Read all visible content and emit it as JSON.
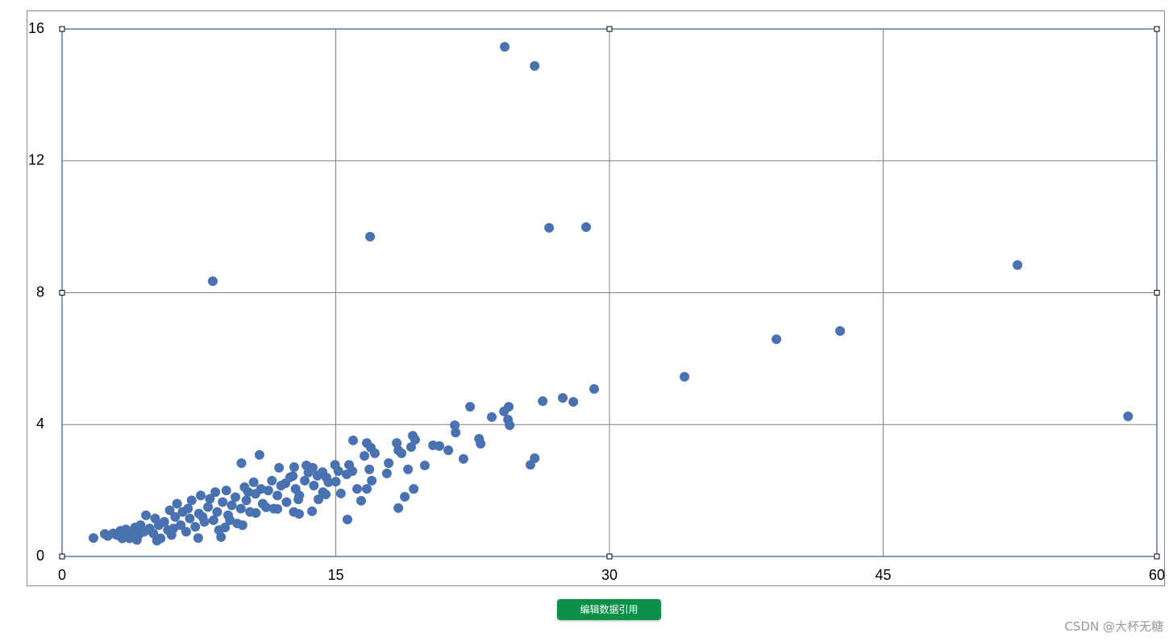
{
  "chart_data": {
    "type": "scatter",
    "color": "#4a72b0",
    "grid": true,
    "xlim": [
      0,
      60
    ],
    "ylim": [
      0,
      16
    ],
    "xticks": [
      0,
      15,
      30,
      45,
      60
    ],
    "yticks": [
      0,
      4,
      8,
      12,
      16
    ],
    "x": [
      24.26,
      25.9,
      16.88,
      26.69,
      28.72,
      8.26,
      52.36,
      39.15,
      42.64,
      34.11,
      58.42,
      29.16,
      22.36,
      24.48,
      26.34,
      27.44,
      28.02,
      23.55,
      24.22,
      24.44,
      24.53,
      21.52,
      21.57,
      22.85,
      22.94,
      22.0,
      25.67,
      25.9,
      20.33,
      20.68,
      21.17,
      19.22,
      19.35,
      19.13,
      18.34,
      18.43,
      18.6,
      19.88,
      18.96,
      19.27,
      18.78,
      18.43,
      17.9,
      17.8,
      15.95,
      16.7,
      16.92,
      17.14,
      16.57,
      16.84,
      16.97,
      16.7,
      16.39,
      16.17,
      15.73,
      15.91,
      15.6,
      15.64,
      14.96,
      15.14,
      15.0,
      15.28,
      14.49,
      14.45,
      14.27,
      13.74,
      13.39,
      13.7,
      12.72,
      12.64,
      12.24,
      11.89,
      10.82,
      9.83,
      12.99,
      12.95,
      14.05,
      11.8,
      11.18,
      10.62,
      9.89,
      8.93,
      8.71,
      7.46,
      1.72,
      2.34,
      2.5,
      2.8,
      3.0,
      3.2,
      3.4,
      3.5,
      3.7,
      3.9,
      4.0,
      4.2,
      4.3,
      4.5,
      4.6,
      4.8,
      5.0,
      5.1,
      5.3,
      5.4,
      5.6,
      5.8,
      5.9,
      6.0,
      6.2,
      6.3,
      6.5,
      6.6,
      6.8,
      7.0,
      7.1,
      7.3,
      7.5,
      7.6,
      7.8,
      8.0,
      8.1,
      8.3,
      8.5,
      8.6,
      8.8,
      9.0,
      9.1,
      9.3,
      9.5,
      9.6,
      9.8,
      10.0,
      10.1,
      10.3,
      10.5,
      10.6,
      10.9,
      11.0,
      11.3,
      11.5,
      11.8,
      12.0,
      12.3,
      12.5,
      12.8,
      13.0,
      13.3,
      13.5,
      13.8,
      14.0,
      14.3,
      14.6,
      3.3,
      4.1,
      5.2,
      6.1,
      6.9,
      7.7,
      8.4,
      9.2,
      10.2,
      11.6,
      12.7
    ],
    "y": [
      15.46,
      14.88,
      9.7,
      9.97,
      9.99,
      8.35,
      8.84,
      6.59,
      6.84,
      5.45,
      4.25,
      5.08,
      4.54,
      4.54,
      4.71,
      4.81,
      4.69,
      4.23,
      4.4,
      4.15,
      3.98,
      3.98,
      3.76,
      3.57,
      3.42,
      2.96,
      2.78,
      2.98,
      3.37,
      3.35,
      3.22,
      3.66,
      3.54,
      3.32,
      3.44,
      3.22,
      3.13,
      2.76,
      2.64,
      2.05,
      1.81,
      1.47,
      2.83,
      2.52,
      3.52,
      3.44,
      3.3,
      3.13,
      3.05,
      2.64,
      2.3,
      2.05,
      1.69,
      2.05,
      2.78,
      2.59,
      2.49,
      1.12,
      2.78,
      2.59,
      2.27,
      1.91,
      2.39,
      1.88,
      2.56,
      2.69,
      2.76,
      1.37,
      2.71,
      2.44,
      2.22,
      2.69,
      3.08,
      2.83,
      1.29,
      1.73,
      1.73,
      1.44,
      1.49,
      1.32,
      0.95,
      0.88,
      0.59,
      0.56,
      0.56,
      0.68,
      0.62,
      0.7,
      0.65,
      0.78,
      0.6,
      0.82,
      0.55,
      0.72,
      0.88,
      0.66,
      0.95,
      0.75,
      1.25,
      0.85,
      0.7,
      1.15,
      0.95,
      0.55,
      1.05,
      0.8,
      1.4,
      0.65,
      1.2,
      1.6,
      0.95,
      1.35,
      0.75,
      1.15,
      1.7,
      0.9,
      1.3,
      1.85,
      1.05,
      1.5,
      1.75,
      1.1,
      1.35,
      0.8,
      1.65,
      2.0,
      1.25,
      1.55,
      1.8,
      1.0,
      1.45,
      2.1,
      1.7,
      1.35,
      2.25,
      1.9,
      2.05,
      1.6,
      2.0,
      2.3,
      1.85,
      2.15,
      1.65,
      2.4,
      2.05,
      1.85,
      2.3,
      2.55,
      2.15,
      2.45,
      1.95,
      2.25,
      0.55,
      0.5,
      0.48,
      0.85,
      1.45,
      1.2,
      1.95,
      1.1,
      1.95,
      1.45,
      1.35
    ]
  },
  "ui": {
    "button": "编辑数据引用",
    "watermark": "CSDN @大杯无糖"
  }
}
